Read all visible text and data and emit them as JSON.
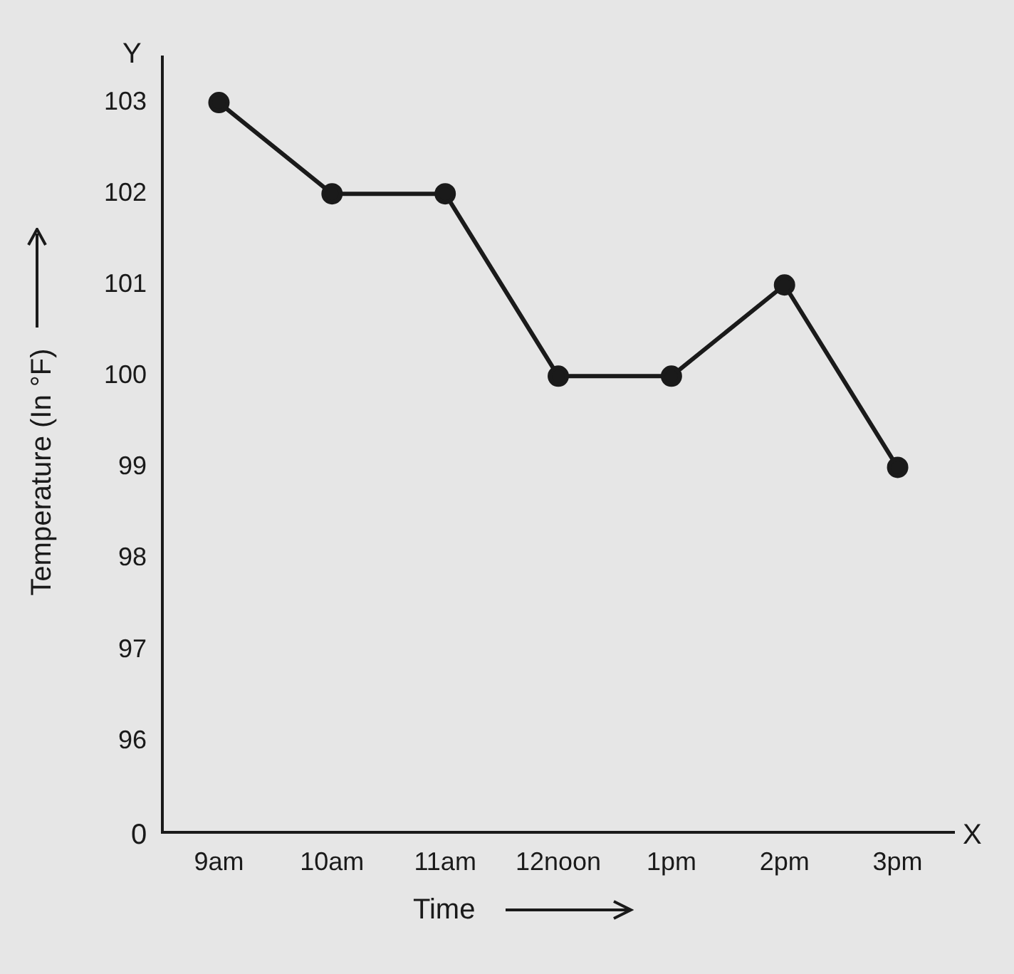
{
  "chart_data": {
    "type": "line",
    "xlabel": "Time",
    "ylabel": "Temperature (In °F)",
    "categories": [
      "9am",
      "10am",
      "11am",
      "12noon",
      "1pm",
      "2pm",
      "3pm"
    ],
    "series": [
      {
        "color": "#1a1a1a",
        "values": [
          103,
          102,
          102,
          100,
          100,
          101,
          99
        ]
      }
    ],
    "ylim": [
      95,
      103.5
    ],
    "yticks": [
      96,
      97,
      98,
      99,
      100,
      101,
      102,
      103
    ],
    "annotations": [
      "Y",
      "X",
      "0"
    ],
    "marker": "circle",
    "line_style": "solid",
    "grid": false,
    "legend": false
  }
}
